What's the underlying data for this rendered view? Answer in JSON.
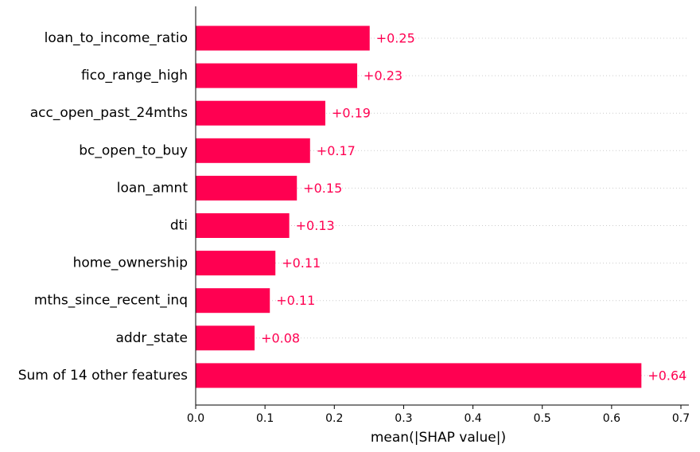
{
  "chart_data": {
    "type": "bar",
    "orientation": "horizontal",
    "categories": [
      "loan_to_income_ratio",
      "fico_range_high",
      "acc_open_past_24mths",
      "bc_open_to_buy",
      "loan_amnt",
      "dti",
      "home_ownership",
      "mths_since_recent_inq",
      "addr_state",
      "Sum of 14 other features"
    ],
    "values": [
      0.251,
      0.233,
      0.187,
      0.165,
      0.146,
      0.135,
      0.115,
      0.107,
      0.085,
      0.643
    ],
    "value_labels": [
      "+0.25",
      "+0.23",
      "+0.19",
      "+0.17",
      "+0.15",
      "+0.13",
      "+0.11",
      "+0.11",
      "+0.08",
      "+0.64"
    ],
    "xlabel": "mean(|SHAP value|)",
    "ylabel": "",
    "title": "",
    "xlim": [
      0,
      0.7
    ],
    "xticks": [
      "0.0",
      "0.1",
      "0.2",
      "0.3",
      "0.4",
      "0.5",
      "0.6",
      "0.7"
    ],
    "bar_color": "#ff0051",
    "label_color": "#ff0051",
    "grid": "dotted row guides"
  }
}
